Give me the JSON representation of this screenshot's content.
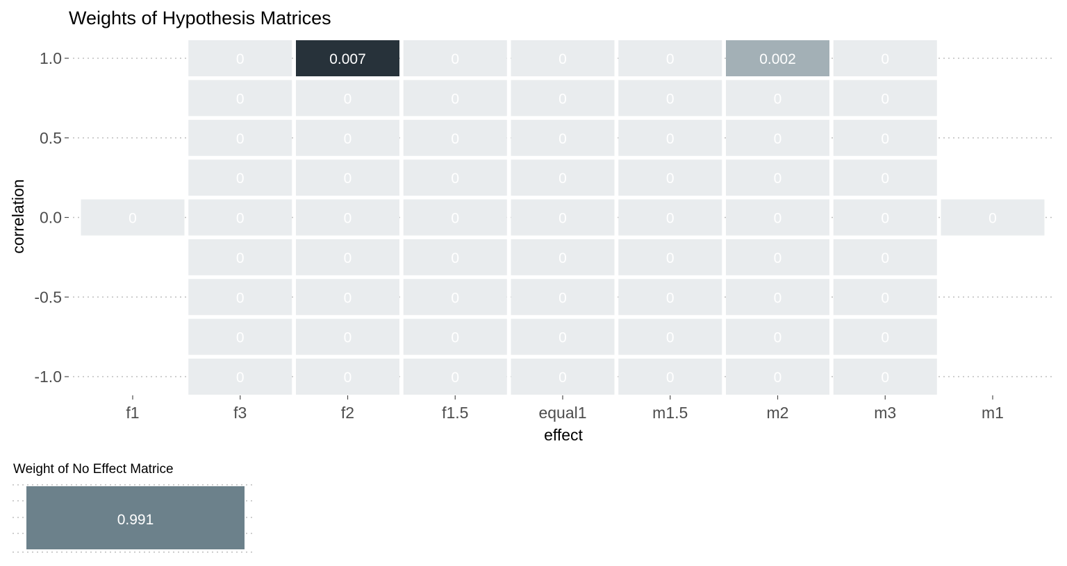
{
  "chart_data": [
    {
      "type": "heatmap",
      "title": "Weights of Hypothesis Matrices",
      "xlabel": "effect",
      "ylabel": "correlation",
      "x_categories": [
        "f1",
        "f3",
        "f2",
        "f1.5",
        "equal1",
        "m1.5",
        "m2",
        "m3",
        "m1"
      ],
      "y_values": [
        1.0,
        0.75,
        0.5,
        0.25,
        0.0,
        -0.25,
        -0.5,
        -0.75,
        -1.0
      ],
      "y_ticks": [
        "1.0",
        "0.5",
        "0.0",
        "-0.5",
        "-1.0"
      ],
      "y_tick_values": [
        1.0,
        0.5,
        0.0,
        -0.5,
        -1.0
      ],
      "ylim": [
        -1.0,
        1.0
      ],
      "grid": "dotted horizontal at major ticks",
      "legend": "none",
      "colors": {
        "low": "#e9ecee",
        "mid": "#9fadb3",
        "high": "#27323a",
        "label_light": "#ffffff"
      },
      "cells": [
        {
          "x": "f3",
          "y": 1.0,
          "value": "0"
        },
        {
          "x": "f2",
          "y": 1.0,
          "value": "0.007"
        },
        {
          "x": "f1.5",
          "y": 1.0,
          "value": "0"
        },
        {
          "x": "equal1",
          "y": 1.0,
          "value": "0"
        },
        {
          "x": "m1.5",
          "y": 1.0,
          "value": "0"
        },
        {
          "x": "m2",
          "y": 1.0,
          "value": "0.002"
        },
        {
          "x": "m3",
          "y": 1.0,
          "value": "0"
        },
        {
          "x": "f3",
          "y": 0.75,
          "value": "0"
        },
        {
          "x": "f2",
          "y": 0.75,
          "value": "0"
        },
        {
          "x": "f1.5",
          "y": 0.75,
          "value": "0"
        },
        {
          "x": "equal1",
          "y": 0.75,
          "value": "0"
        },
        {
          "x": "m1.5",
          "y": 0.75,
          "value": "0"
        },
        {
          "x": "m2",
          "y": 0.75,
          "value": "0"
        },
        {
          "x": "m3",
          "y": 0.75,
          "value": "0"
        },
        {
          "x": "f3",
          "y": 0.5,
          "value": "0"
        },
        {
          "x": "f2",
          "y": 0.5,
          "value": "0"
        },
        {
          "x": "f1.5",
          "y": 0.5,
          "value": "0"
        },
        {
          "x": "equal1",
          "y": 0.5,
          "value": "0"
        },
        {
          "x": "m1.5",
          "y": 0.5,
          "value": "0"
        },
        {
          "x": "m2",
          "y": 0.5,
          "value": "0"
        },
        {
          "x": "m3",
          "y": 0.5,
          "value": "0"
        },
        {
          "x": "f3",
          "y": 0.25,
          "value": "0"
        },
        {
          "x": "f2",
          "y": 0.25,
          "value": "0"
        },
        {
          "x": "f1.5",
          "y": 0.25,
          "value": "0"
        },
        {
          "x": "equal1",
          "y": 0.25,
          "value": "0"
        },
        {
          "x": "m1.5",
          "y": 0.25,
          "value": "0"
        },
        {
          "x": "m2",
          "y": 0.25,
          "value": "0"
        },
        {
          "x": "m3",
          "y": 0.25,
          "value": "0"
        },
        {
          "x": "f1",
          "y": 0.0,
          "value": "0"
        },
        {
          "x": "f3",
          "y": 0.0,
          "value": "0"
        },
        {
          "x": "f2",
          "y": 0.0,
          "value": "0"
        },
        {
          "x": "f1.5",
          "y": 0.0,
          "value": "0"
        },
        {
          "x": "equal1",
          "y": 0.0,
          "value": "0"
        },
        {
          "x": "m1.5",
          "y": 0.0,
          "value": "0"
        },
        {
          "x": "m2",
          "y": 0.0,
          "value": "0"
        },
        {
          "x": "m3",
          "y": 0.0,
          "value": "0"
        },
        {
          "x": "m1",
          "y": 0.0,
          "value": "0"
        },
        {
          "x": "f3",
          "y": -0.25,
          "value": "0"
        },
        {
          "x": "f2",
          "y": -0.25,
          "value": "0"
        },
        {
          "x": "f1.5",
          "y": -0.25,
          "value": "0"
        },
        {
          "x": "equal1",
          "y": -0.25,
          "value": "0"
        },
        {
          "x": "m1.5",
          "y": -0.25,
          "value": "0"
        },
        {
          "x": "m2",
          "y": -0.25,
          "value": "0"
        },
        {
          "x": "m3",
          "y": -0.25,
          "value": "0"
        },
        {
          "x": "f3",
          "y": -0.5,
          "value": "0"
        },
        {
          "x": "f2",
          "y": -0.5,
          "value": "0"
        },
        {
          "x": "f1.5",
          "y": -0.5,
          "value": "0"
        },
        {
          "x": "equal1",
          "y": -0.5,
          "value": "0"
        },
        {
          "x": "m1.5",
          "y": -0.5,
          "value": "0"
        },
        {
          "x": "m2",
          "y": -0.5,
          "value": "0"
        },
        {
          "x": "m3",
          "y": -0.5,
          "value": "0"
        },
        {
          "x": "f3",
          "y": -0.75,
          "value": "0"
        },
        {
          "x": "f2",
          "y": -0.75,
          "value": "0"
        },
        {
          "x": "f1.5",
          "y": -0.75,
          "value": "0"
        },
        {
          "x": "equal1",
          "y": -0.75,
          "value": "0"
        },
        {
          "x": "m1.5",
          "y": -0.75,
          "value": "0"
        },
        {
          "x": "m2",
          "y": -0.75,
          "value": "0"
        },
        {
          "x": "m3",
          "y": -0.75,
          "value": "0"
        },
        {
          "x": "f3",
          "y": -1.0,
          "value": "0"
        },
        {
          "x": "f2",
          "y": -1.0,
          "value": "0"
        },
        {
          "x": "f1.5",
          "y": -1.0,
          "value": "0"
        },
        {
          "x": "equal1",
          "y": -1.0,
          "value": "0"
        },
        {
          "x": "m1.5",
          "y": -1.0,
          "value": "0"
        },
        {
          "x": "m2",
          "y": -1.0,
          "value": "0"
        },
        {
          "x": "m3",
          "y": -1.0,
          "value": "0"
        }
      ]
    },
    {
      "type": "heatmap",
      "title": "Weight of No Effect Matrice",
      "value": "0.991",
      "grid": "dotted horizontal",
      "legend": "none",
      "colors": {
        "fill": "#6c818b",
        "label": "#ffffff"
      }
    }
  ]
}
